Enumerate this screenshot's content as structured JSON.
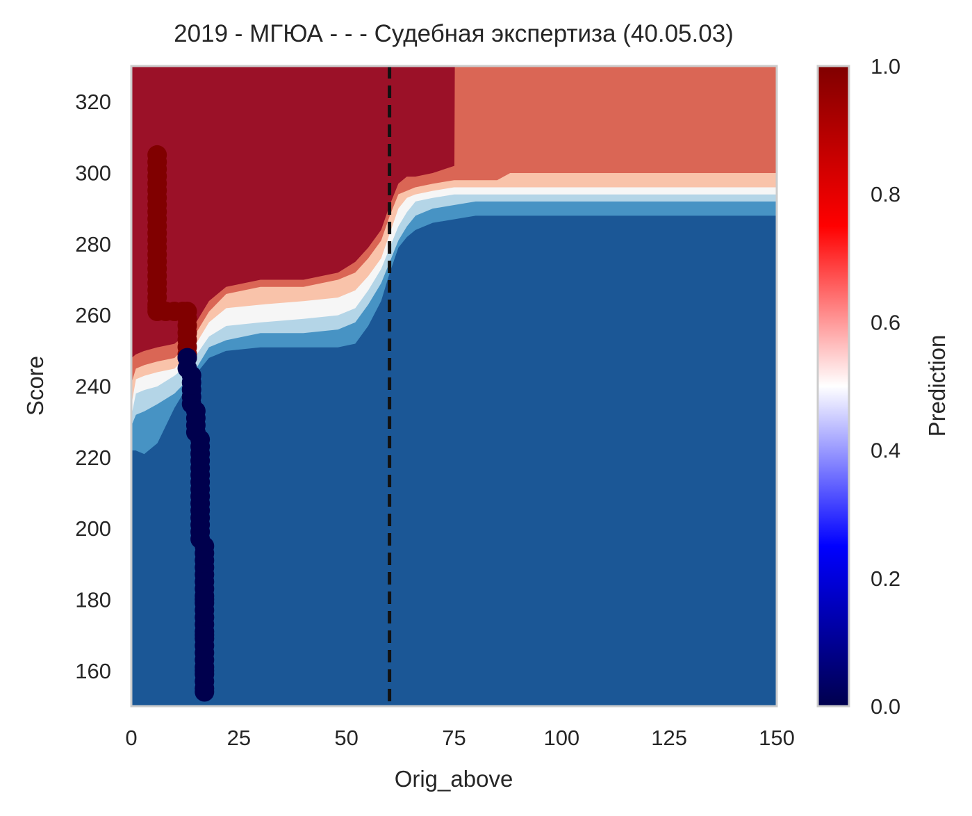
{
  "chart_data": {
    "type": "heatmap",
    "title": "2019 - МГЮА - - - Судебная экспертиза (40.05.03)",
    "xlabel": "Orig_above",
    "ylabel": "Score",
    "xlim": [
      0,
      150
    ],
    "ylim": [
      150,
      330
    ],
    "x_ticks": [
      "0",
      "25",
      "50",
      "75",
      "100",
      "125",
      "150"
    ],
    "y_ticks": [
      "160",
      "180",
      "200",
      "220",
      "240",
      "260",
      "280",
      "300",
      "320"
    ],
    "grid": false,
    "reference_line": {
      "x": 60,
      "style": "dashed",
      "color": "#111111"
    },
    "contour_levels": [
      {
        "level": "0.0-0.2",
        "color": "#1b5796"
      },
      {
        "level": "0.2-0.3",
        "color": "#4793c4"
      },
      {
        "level": "0.3-0.4",
        "color": "#b4d5e7"
      },
      {
        "level": "0.4-0.5",
        "color": "#f6f6f6"
      },
      {
        "level": "0.5-0.6",
        "color": "#f9c3aa"
      },
      {
        "level": "0.6-0.8",
        "color": "#da6655"
      },
      {
        "level": "0.8-1.0",
        "color": "#9b1128"
      }
    ],
    "decision_boundaries": [
      {
        "name": "b02",
        "x": [
          0,
          1,
          3,
          6,
          10,
          14,
          18,
          22,
          30,
          40,
          48,
          52,
          55,
          58,
          60,
          62,
          64,
          66,
          70,
          75,
          80,
          85,
          88,
          90,
          100,
          110,
          120,
          125,
          130,
          140,
          150
        ],
        "y": [
          222,
          222,
          221,
          224,
          234,
          242,
          248,
          250,
          251,
          251,
          251,
          252,
          257,
          264,
          272,
          279,
          282,
          284,
          286,
          287,
          288,
          288,
          288,
          288,
          288,
          288,
          288,
          288,
          288,
          288,
          288
        ]
      },
      {
        "name": "b03",
        "x": [
          0,
          1,
          3,
          6,
          10,
          14,
          18,
          22,
          30,
          40,
          48,
          52,
          55,
          58,
          60,
          62,
          64,
          66,
          70,
          75,
          80,
          85,
          88,
          90,
          100,
          110,
          120,
          125,
          130,
          140,
          150
        ],
        "y": [
          229,
          232,
          233,
          235,
          238,
          243,
          251,
          253,
          255,
          255,
          256,
          258,
          263,
          269,
          275,
          281,
          285,
          288,
          290,
          291,
          292,
          292,
          292,
          292,
          292,
          292,
          292,
          292,
          292,
          292,
          292
        ]
      },
      {
        "name": "b04",
        "x": [
          0,
          1,
          3,
          6,
          10,
          14,
          18,
          22,
          30,
          40,
          48,
          52,
          55,
          58,
          60,
          62,
          64,
          66,
          70,
          75,
          80,
          85,
          88,
          90,
          100,
          110,
          120,
          125,
          130,
          140,
          150
        ],
        "y": [
          232,
          238,
          239,
          240,
          243,
          247,
          254,
          257,
          258,
          259,
          260,
          262,
          267,
          273,
          279,
          285,
          289,
          292,
          293,
          294,
          294,
          294,
          294,
          294,
          294,
          294,
          294,
          294,
          294,
          294,
          294
        ]
      },
      {
        "name": "b05",
        "x": [
          0,
          1,
          3,
          6,
          10,
          14,
          18,
          22,
          30,
          40,
          48,
          52,
          55,
          58,
          60,
          62,
          64,
          66,
          70,
          75,
          80,
          85,
          88,
          90,
          100,
          110,
          120,
          125,
          130,
          140,
          150
        ],
        "y": [
          235,
          242,
          243,
          244,
          245,
          250,
          258,
          262,
          263,
          264,
          265,
          267,
          271,
          276,
          283,
          290,
          293,
          294,
          295,
          296,
          296,
          296,
          296,
          296,
          296,
          296,
          296,
          296,
          296,
          296,
          296
        ]
      },
      {
        "name": "b06",
        "x": [
          0,
          1,
          3,
          6,
          10,
          14,
          18,
          22,
          30,
          40,
          48,
          52,
          55,
          58,
          60,
          62,
          64,
          66,
          70,
          75,
          80,
          85,
          88,
          90,
          100,
          110,
          120,
          125,
          130,
          140,
          150
        ],
        "y": [
          241,
          245,
          246,
          247,
          248,
          253,
          261,
          266,
          268,
          268,
          270,
          272,
          276,
          281,
          288,
          294,
          295,
          296,
          297,
          298,
          298,
          298,
          300,
          300,
          300,
          300,
          300,
          300,
          300,
          300,
          300
        ]
      },
      {
        "name": "b08",
        "x": [
          0,
          1,
          3,
          6,
          10,
          14,
          18,
          22,
          30,
          40,
          48,
          52,
          55,
          58,
          60,
          62,
          64,
          66,
          70,
          75,
          75.1,
          150
        ],
        "y": [
          248,
          249,
          250,
          251,
          252,
          256,
          264,
          268,
          270,
          270,
          272,
          275,
          279,
          284,
          291,
          297,
          299,
          299,
          300,
          302,
          330,
          330
        ]
      }
    ],
    "series": [
      {
        "class": 1,
        "color": "#800000",
        "x": [
          6,
          6,
          6,
          6,
          6,
          6,
          6,
          6,
          6,
          6,
          6,
          6,
          6,
          6,
          6,
          6,
          6,
          6,
          6,
          6,
          6,
          6,
          6,
          6,
          8,
          10,
          12,
          13,
          13,
          13,
          13,
          13,
          13,
          13,
          13
        ],
        "y": [
          305,
          303,
          301,
          299,
          297,
          295,
          293,
          291,
          289,
          287,
          285,
          283,
          281,
          279,
          277,
          275,
          273,
          271,
          269,
          267,
          265,
          263,
          262,
          261,
          261,
          261,
          261,
          261,
          259,
          257,
          255,
          253,
          251,
          249,
          248
        ]
      },
      {
        "class": 0,
        "color": "#00004d",
        "x": [
          13,
          13,
          14,
          14,
          14,
          14,
          14,
          15,
          15,
          15,
          15,
          16,
          16,
          16,
          16,
          16,
          16,
          16,
          16,
          16,
          16,
          16,
          16,
          16,
          16,
          16,
          17,
          17,
          17,
          17,
          17,
          17,
          17,
          17,
          17,
          17,
          17,
          17,
          17,
          17,
          17,
          17,
          17,
          17,
          17,
          17,
          17,
          17,
          17,
          17,
          17
        ],
        "y": [
          248,
          245,
          243,
          241,
          239,
          237,
          235,
          233,
          231,
          229,
          227,
          225,
          223,
          221,
          219,
          217,
          215,
          213,
          211,
          209,
          207,
          205,
          203,
          201,
          199,
          197,
          195,
          193,
          191,
          189,
          187,
          185,
          183,
          181,
          179,
          177,
          175,
          173,
          171,
          169,
          167,
          165,
          163,
          161,
          159,
          157,
          155,
          154,
          160,
          170,
          180
        ]
      }
    ],
    "colorbar": {
      "label": "Prediction",
      "ticks": [
        "0.0",
        "0.2",
        "0.4",
        "0.6",
        "0.8",
        "1.0"
      ],
      "range": [
        0,
        1
      ],
      "colormap": "seismic",
      "stops": [
        {
          "value": 0.0,
          "color": "#00004d"
        },
        {
          "value": 0.25,
          "color": "#0000ff"
        },
        {
          "value": 0.5,
          "color": "#ffffff"
        },
        {
          "value": 0.75,
          "color": "#ff0000"
        },
        {
          "value": 1.0,
          "color": "#800000"
        }
      ]
    }
  }
}
